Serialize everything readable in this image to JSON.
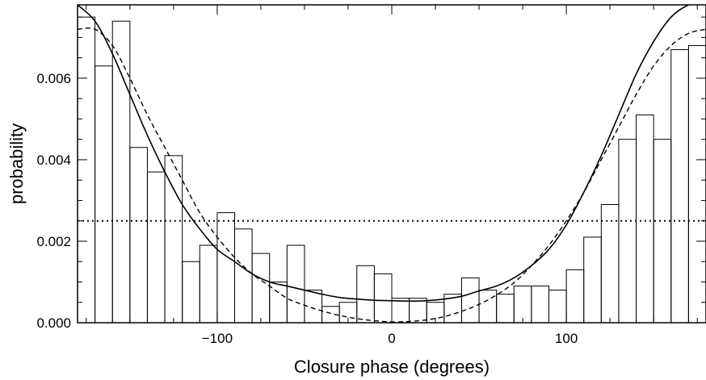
{
  "chart_data": {
    "type": "bar",
    "xlabel": "Closure phase (degrees)",
    "ylabel": "probability",
    "xlim": [
      -180,
      180
    ],
    "ylim": [
      0,
      0.0078
    ],
    "grid": false,
    "bin_width": 10,
    "x_ticks": [
      -100,
      0,
      100
    ],
    "x_tick_labels": [
      "−100",
      "0",
      "100"
    ],
    "y_ticks": [
      0.0,
      0.002,
      0.004,
      0.006
    ],
    "y_tick_labels": [
      "0.000",
      "0.002",
      "0.004",
      "0.006"
    ],
    "histogram": {
      "bin_centers": [
        -175,
        -165,
        -155,
        -145,
        -135,
        -125,
        -115,
        -105,
        -95,
        -85,
        -75,
        -65,
        -55,
        -45,
        -35,
        -25,
        -15,
        -5,
        5,
        15,
        25,
        35,
        45,
        55,
        65,
        75,
        85,
        95,
        105,
        115,
        125,
        135,
        145,
        155,
        165,
        175
      ],
      "values": [
        0.0075,
        0.0063,
        0.0074,
        0.0043,
        0.0037,
        0.0041,
        0.0015,
        0.0019,
        0.0027,
        0.0023,
        0.0017,
        0.001,
        0.0019,
        0.0008,
        0.0004,
        0.0005,
        0.0014,
        0.0012,
        0.0006,
        0.0006,
        0.0005,
        0.0007,
        0.0011,
        0.0008,
        0.0007,
        0.0009,
        0.0009,
        0.0008,
        0.0013,
        0.0021,
        0.0029,
        0.0045,
        0.0051,
        0.0045,
        0.0067,
        0.0068
      ]
    },
    "series": [
      {
        "style": "solid",
        "x": [
          -180,
          -170,
          -160,
          -150,
          -140,
          -130,
          -120,
          -110,
          -100,
          -90,
          -80,
          -70,
          -60,
          -50,
          -40,
          -30,
          -20,
          -10,
          0,
          10,
          20,
          30,
          40,
          50,
          60,
          70,
          80,
          90,
          100,
          110,
          120,
          130,
          140,
          150,
          160,
          170,
          180
        ],
        "values": [
          0.0078,
          0.0074,
          0.0066,
          0.0056,
          0.0046,
          0.0037,
          0.0029,
          0.0023,
          0.0018,
          0.0015,
          0.0012,
          0.001,
          0.0009,
          0.0008,
          0.0007,
          0.00062,
          0.00058,
          0.00055,
          0.00054,
          0.00053,
          0.00054,
          0.00058,
          0.00065,
          0.00078,
          0.0009,
          0.0011,
          0.0014,
          0.0018,
          0.0024,
          0.0032,
          0.0041,
          0.0051,
          0.0061,
          0.0069,
          0.0075,
          0.0078,
          0.0079
        ]
      },
      {
        "style": "dashed",
        "x": [
          -180,
          -170,
          -160,
          -150,
          -140,
          -130,
          -120,
          -110,
          -100,
          -90,
          -80,
          -70,
          -60,
          -50,
          -40,
          -30,
          -20,
          -10,
          0,
          10,
          20,
          30,
          40,
          50,
          60,
          70,
          80,
          90,
          100,
          110,
          120,
          130,
          140,
          150,
          160,
          170,
          180
        ],
        "values": [
          0.0072,
          0.0072,
          0.0068,
          0.006,
          0.0051,
          0.0043,
          0.0035,
          0.0027,
          0.0021,
          0.0016,
          0.0012,
          0.0009,
          0.0006,
          0.00043,
          0.00029,
          0.00018,
          0.0001,
          5e-05,
          2e-05,
          3e-05,
          7e-05,
          0.00015,
          0.00028,
          0.00045,
          0.00068,
          0.00098,
          0.0014,
          0.0019,
          0.0025,
          0.0032,
          0.004,
          0.0048,
          0.0056,
          0.0063,
          0.0068,
          0.0071,
          0.0072
        ]
      },
      {
        "style": "dotted",
        "x": [
          -180,
          180
        ],
        "values": [
          0.0025,
          0.0025
        ]
      }
    ]
  }
}
